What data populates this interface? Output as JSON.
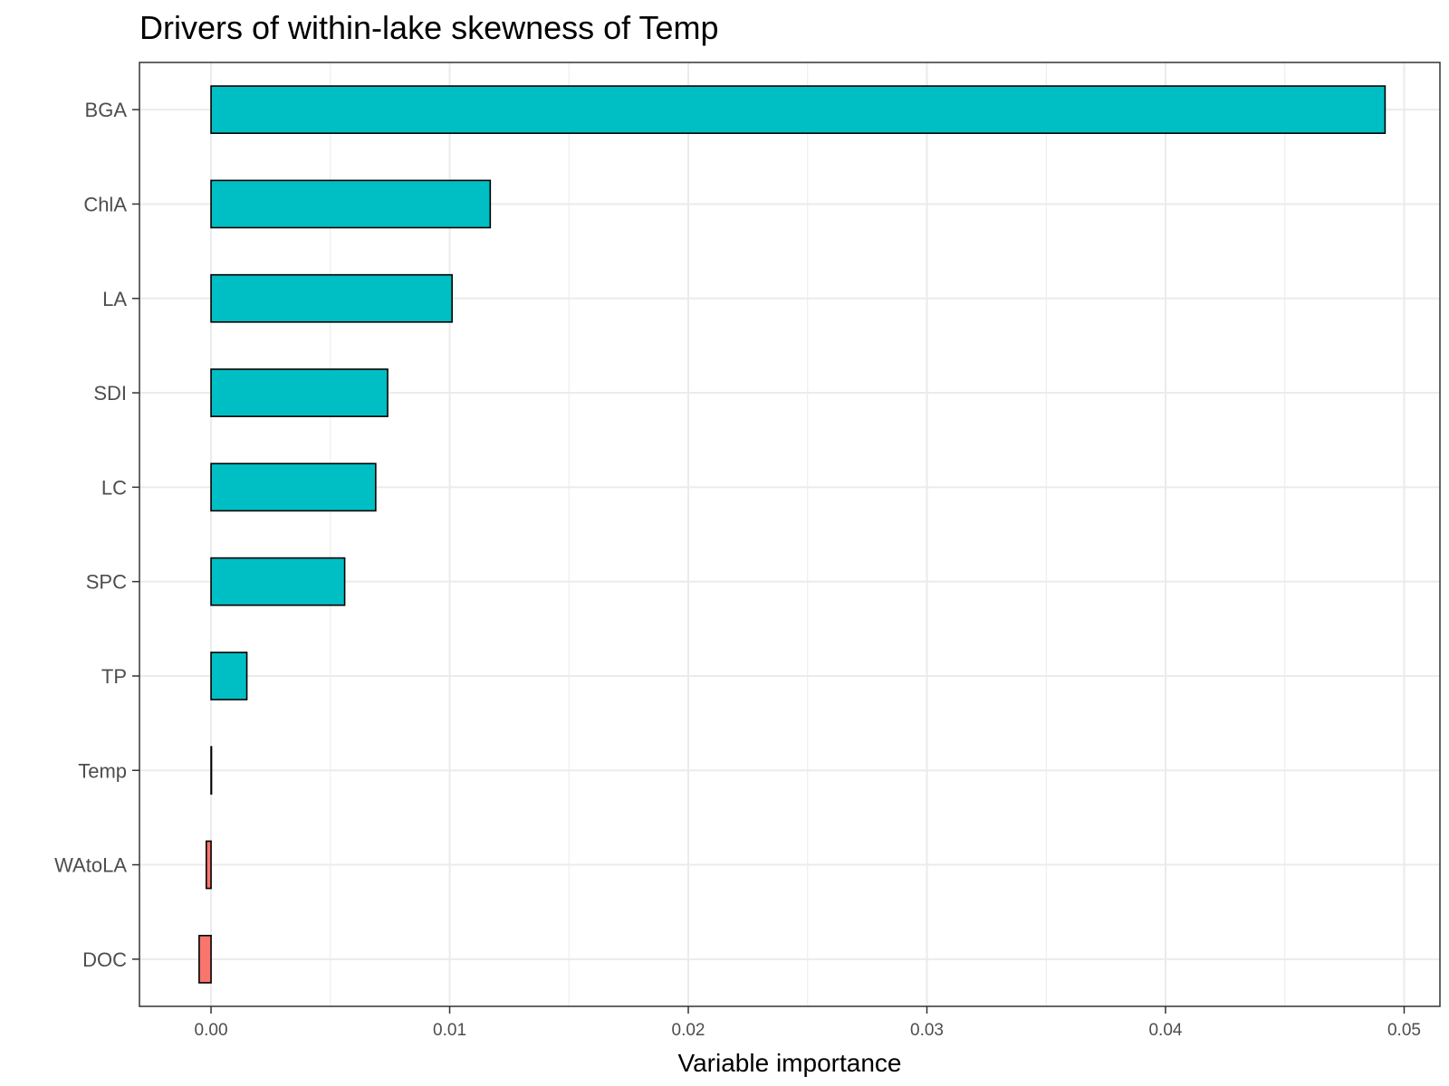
{
  "chart_data": {
    "type": "bar",
    "orientation": "horizontal",
    "title": "Drivers of within-lake skewness of Temp",
    "xlabel": "Variable importance",
    "ylabel": "",
    "categories": [
      "BGA",
      "ChlA",
      "LA",
      "SDI",
      "LC",
      "SPC",
      "TP",
      "Temp",
      "WAtoLA",
      "DOC"
    ],
    "values": [
      0.0492,
      0.0117,
      0.0101,
      0.0074,
      0.0069,
      0.0056,
      0.0015,
      0.0,
      -0.0002,
      -0.0005
    ],
    "xlim": [
      -0.003,
      0.0515
    ],
    "xticks": [
      0.0,
      0.01,
      0.02,
      0.03,
      0.04,
      0.05
    ],
    "xtick_labels": [
      "0.00",
      "0.01",
      "0.02",
      "0.03",
      "0.04",
      "0.05"
    ],
    "grid": true,
    "legend": "none",
    "colors": {
      "positive": "#00bfc4",
      "negative": "#f8766d",
      "outline": "#000000",
      "grid": "#ebebeb",
      "panel_border": "#333333"
    }
  }
}
